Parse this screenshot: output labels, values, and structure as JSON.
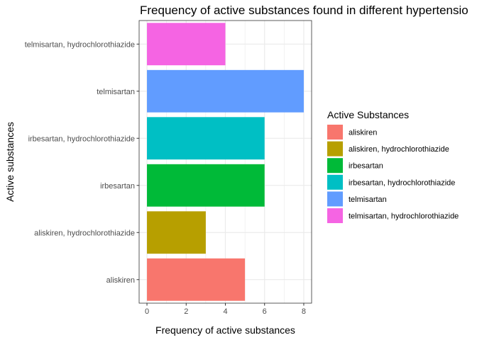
{
  "chart_data": {
    "type": "bar",
    "orientation": "horizontal",
    "title": "Frequency of active substances found in different hypertensio",
    "xlabel": "Frequency of active substances",
    "ylabel": "Active substances",
    "categories": [
      "aliskiren",
      "aliskiren, hydrochlorothiazide",
      "irbesartan",
      "irbesartan, hydrochlorothiazide",
      "telmisartan",
      "telmisartan, hydrochlorothiazide"
    ],
    "values": [
      5,
      3,
      6,
      6,
      8,
      4
    ],
    "colors": [
      "#F8766D",
      "#B79F00",
      "#00BA38",
      "#00BFC4",
      "#619CFF",
      "#F564E3"
    ],
    "xlim": [
      -0.4,
      8.4
    ],
    "xticks": [
      "0",
      "2",
      "4",
      "6",
      "8"
    ],
    "grid": true,
    "legend": {
      "title": "Active Substances",
      "placement": "right"
    }
  }
}
